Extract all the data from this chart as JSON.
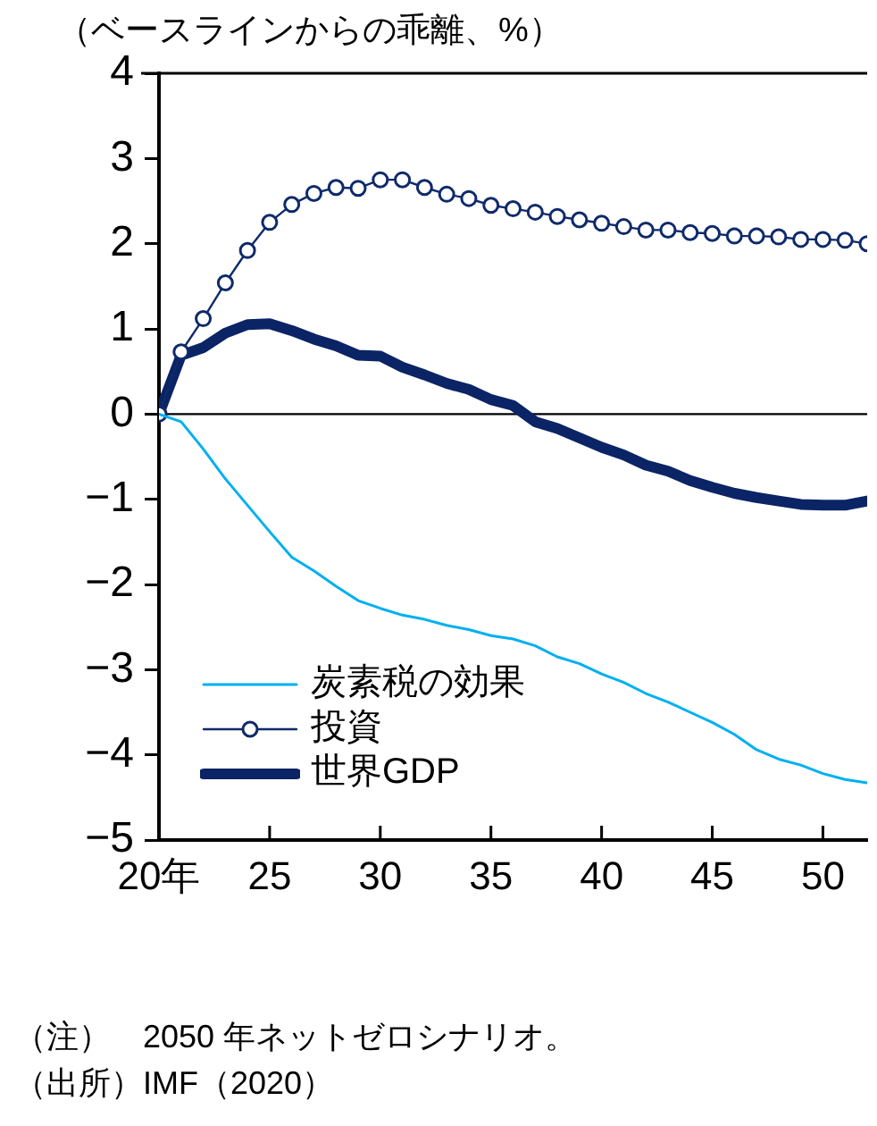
{
  "chart_data": {
    "type": "line",
    "ylabel": "（ベースラインからの乖離、%）",
    "x": [
      20,
      21,
      22,
      23,
      24,
      25,
      26,
      27,
      28,
      29,
      30,
      31,
      32,
      33,
      34,
      35,
      36,
      37,
      38,
      39,
      40,
      41,
      42,
      43,
      44,
      45,
      46,
      47,
      48,
      49,
      50,
      51,
      52
    ],
    "xlim": [
      20,
      52
    ],
    "xticks": [
      {
        "value": 20,
        "label": "20年"
      },
      25,
      30,
      35,
      40,
      45,
      50
    ],
    "ylim": [
      -5,
      4
    ],
    "yticks": [
      -5,
      -4,
      -3,
      -2,
      -1,
      0,
      1,
      2,
      3,
      4
    ],
    "series": [
      {
        "name": "炭素税の効果",
        "color": "#00b0f0",
        "marker": "none",
        "values": [
          0,
          -0.09,
          -0.41,
          -0.76,
          -1.07,
          -1.38,
          -1.68,
          -1.84,
          -2.02,
          -2.19,
          -2.28,
          -2.36,
          -2.41,
          -2.48,
          -2.53,
          -2.6,
          -2.64,
          -2.72,
          -2.85,
          -2.93,
          -3.05,
          -3.15,
          -3.28,
          -3.38,
          -3.5,
          -3.62,
          -3.76,
          -3.94,
          -4.05,
          -4.12,
          -4.22,
          -4.29,
          -4.33
        ]
      },
      {
        "name": "投資",
        "color": "#0f2a6b",
        "marker": "circle",
        "values": [
          0,
          0.73,
          1.12,
          1.54,
          1.92,
          2.25,
          2.46,
          2.59,
          2.66,
          2.65,
          2.75,
          2.75,
          2.66,
          2.58,
          2.53,
          2.45,
          2.41,
          2.37,
          2.32,
          2.28,
          2.24,
          2.2,
          2.16,
          2.16,
          2.13,
          2.12,
          2.09,
          2.09,
          2.08,
          2.05,
          2.05,
          2.04,
          2.0
        ]
      },
      {
        "name": "世界GDP",
        "color": "#0a2466",
        "marker": "none",
        "values": [
          0,
          0.69,
          0.78,
          0.95,
          1.05,
          1.06,
          0.98,
          0.88,
          0.8,
          0.69,
          0.68,
          0.55,
          0.46,
          0.36,
          0.29,
          0.17,
          0.1,
          -0.09,
          -0.17,
          -0.28,
          -0.39,
          -0.48,
          -0.6,
          -0.67,
          -0.78,
          -0.86,
          -0.93,
          -0.98,
          -1.02,
          -1.06,
          -1.07,
          -1.07,
          -1.02
        ]
      }
    ],
    "ref_lines": [
      {
        "axis": "y",
        "value": 0,
        "color": "#000000"
      }
    ],
    "grid": false,
    "legend": "bottom left",
    "annotations": [
      "（注）　2050 年ネットゼロシナリオ。",
      "（出所）IMF（2020）"
    ]
  }
}
